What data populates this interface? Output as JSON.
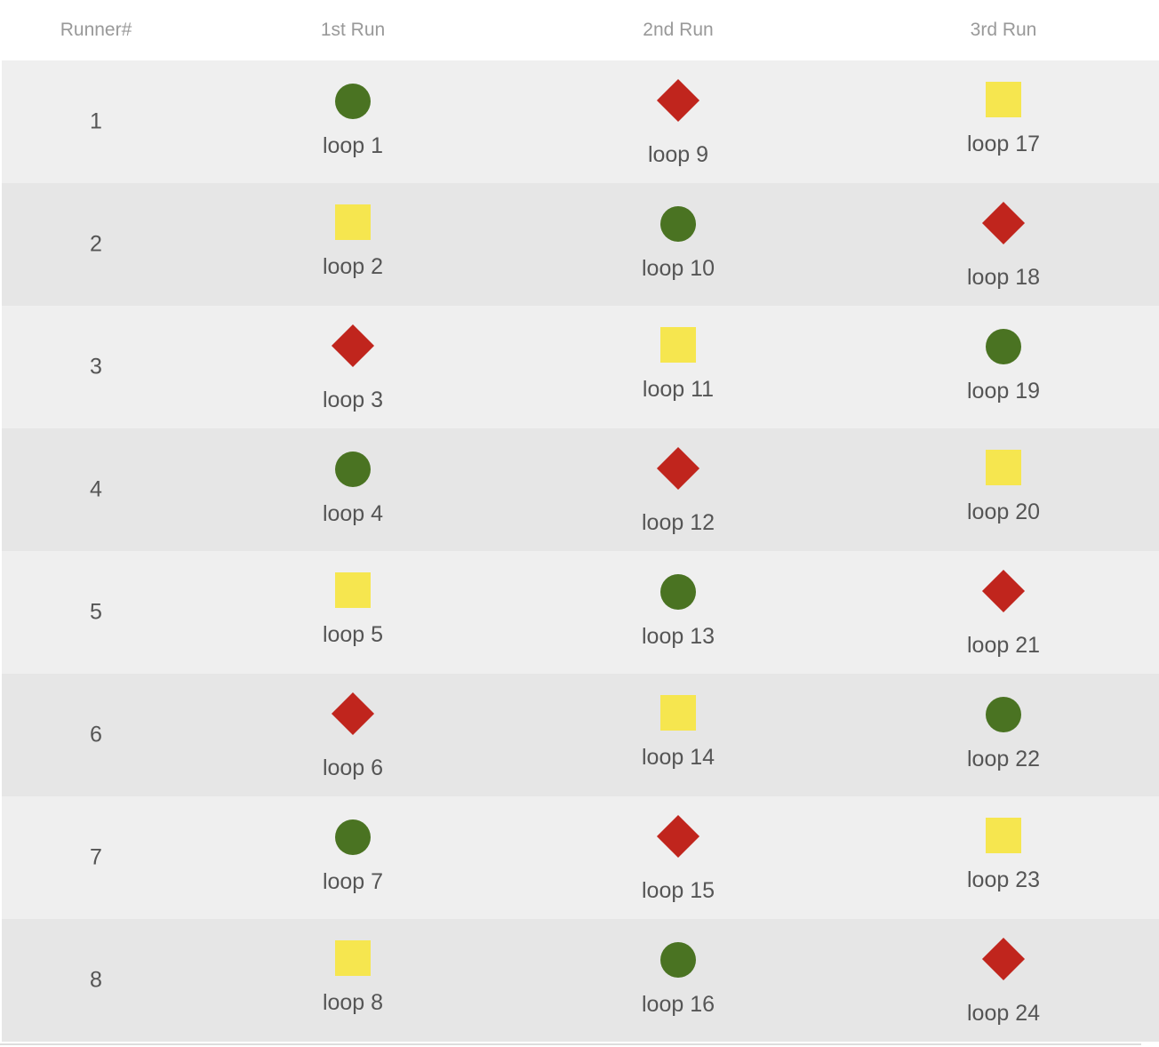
{
  "headers": [
    "Runner#",
    "1st Run",
    "2nd Run",
    "3rd Run"
  ],
  "colors": {
    "circle": "#4a7322",
    "diamond": "#c0251d",
    "square": "#f6e64f"
  },
  "rows": [
    {
      "runner": "1",
      "cells": [
        {
          "shape": "circle",
          "label": "loop 1"
        },
        {
          "shape": "diamond",
          "label": "loop 9"
        },
        {
          "shape": "square",
          "label": "loop 17"
        }
      ]
    },
    {
      "runner": "2",
      "cells": [
        {
          "shape": "square",
          "label": "loop 2"
        },
        {
          "shape": "circle",
          "label": "loop 10"
        },
        {
          "shape": "diamond",
          "label": "loop 18"
        }
      ]
    },
    {
      "runner": "3",
      "cells": [
        {
          "shape": "diamond",
          "label": "loop 3"
        },
        {
          "shape": "square",
          "label": "loop 11"
        },
        {
          "shape": "circle",
          "label": "loop 19"
        }
      ]
    },
    {
      "runner": "4",
      "cells": [
        {
          "shape": "circle",
          "label": "loop 4"
        },
        {
          "shape": "diamond",
          "label": "loop 12"
        },
        {
          "shape": "square",
          "label": "loop 20"
        }
      ]
    },
    {
      "runner": "5",
      "cells": [
        {
          "shape": "square",
          "label": "loop 5"
        },
        {
          "shape": "circle",
          "label": "loop 13"
        },
        {
          "shape": "diamond",
          "label": "loop 21"
        }
      ]
    },
    {
      "runner": "6",
      "cells": [
        {
          "shape": "diamond",
          "label": "loop 6"
        },
        {
          "shape": "square",
          "label": "loop 14"
        },
        {
          "shape": "circle",
          "label": "loop 22"
        }
      ]
    },
    {
      "runner": "7",
      "cells": [
        {
          "shape": "circle",
          "label": "loop 7"
        },
        {
          "shape": "diamond",
          "label": "loop 15"
        },
        {
          "shape": "square",
          "label": "loop 23"
        }
      ]
    },
    {
      "runner": "8",
      "cells": [
        {
          "shape": "square",
          "label": "loop 8"
        },
        {
          "shape": "circle",
          "label": "loop 16"
        },
        {
          "shape": "diamond",
          "label": "loop 24"
        }
      ]
    }
  ]
}
